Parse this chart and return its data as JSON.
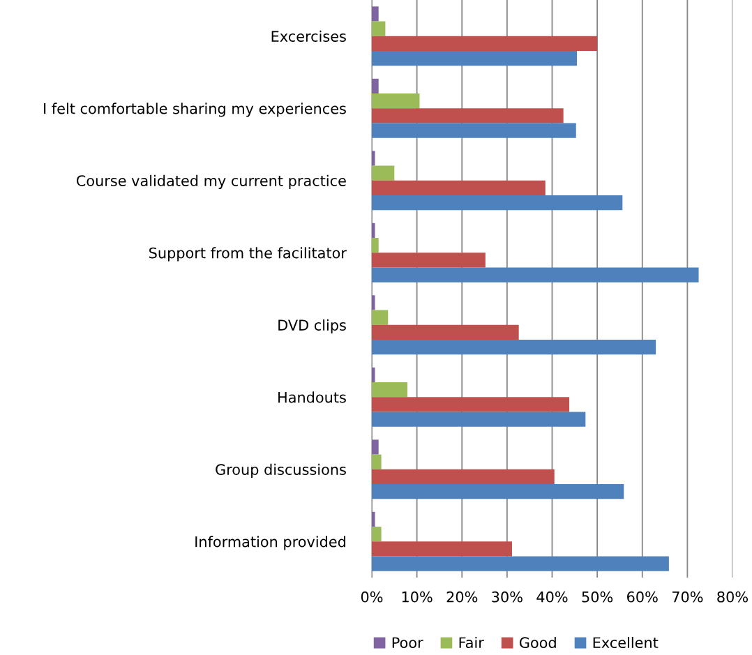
{
  "chart_data": {
    "type": "bar",
    "orientation": "horizontal",
    "categories": [
      "Excercises",
      "I felt comfortable sharing my experiences",
      "Course validated my current practice",
      "Support from the facilitator",
      "DVD clips",
      "Handouts",
      "Group discussions",
      "Information provided"
    ],
    "series": [
      {
        "name": "Poor",
        "color": "#8064a2",
        "values": [
          1.5,
          1.5,
          0.7,
          0.7,
          0.7,
          0.7,
          1.5,
          0.7
        ]
      },
      {
        "name": "Fair",
        "color": "#9bbb59",
        "values": [
          3.0,
          10.6,
          5.0,
          1.5,
          3.6,
          7.9,
          2.1,
          2.1
        ]
      },
      {
        "name": "Good",
        "color": "#c0504d",
        "values": [
          50.0,
          42.5,
          38.5,
          25.2,
          32.6,
          43.8,
          40.5,
          31.1
        ]
      },
      {
        "name": "Excellent",
        "color": "#4f81bd",
        "values": [
          45.5,
          45.3,
          55.6,
          72.5,
          63.0,
          47.4,
          55.9,
          65.9
        ]
      }
    ],
    "xlim": [
      0,
      80
    ],
    "xticks": [
      {
        "value": 0,
        "label": "0%"
      },
      {
        "value": 10,
        "label": "10%"
      },
      {
        "value": 20,
        "label": "20%"
      },
      {
        "value": 30,
        "label": "30%"
      },
      {
        "value": 40,
        "label": "40%"
      },
      {
        "value": 50,
        "label": "50%"
      },
      {
        "value": 60,
        "label": "60%"
      },
      {
        "value": 70,
        "label": "70%"
      },
      {
        "value": 80,
        "label": "80%"
      }
    ],
    "grid": "x",
    "legend": "bottom"
  }
}
